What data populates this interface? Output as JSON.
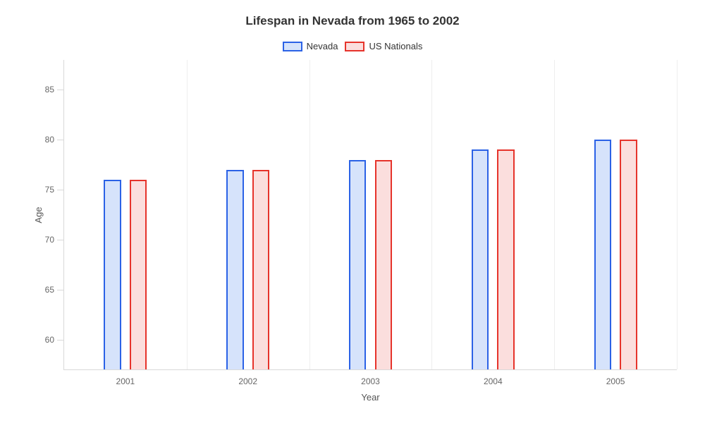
{
  "chart": {
    "type": "bar",
    "title": "Lifespan in Nevada from 1965 to 2002",
    "title_fontsize": 17,
    "background_color": "#ffffff",
    "grid_color": "#eeeeee",
    "axis_color": "#d9d9d9",
    "tick_label_color": "#666666",
    "axis_title_color": "#555555",
    "x_axis_title": "Year",
    "y_axis_title": "Age",
    "categories": [
      "2001",
      "2002",
      "2003",
      "2004",
      "2005"
    ],
    "ylim": [
      57,
      88
    ],
    "y_ticks": [
      60,
      65,
      70,
      75,
      80,
      85
    ],
    "bar_width_pct": 2.8,
    "bar_gap_pct": 1.4,
    "series": [
      {
        "label": "Nevada",
        "fill_color": "#d6e3fb",
        "border_color": "#2b62e6",
        "values": [
          76,
          77,
          78,
          79,
          80
        ]
      },
      {
        "label": "US Nationals",
        "fill_color": "#fbdedd",
        "border_color": "#e6332b",
        "values": [
          76,
          77,
          78,
          79,
          80
        ]
      }
    ]
  }
}
